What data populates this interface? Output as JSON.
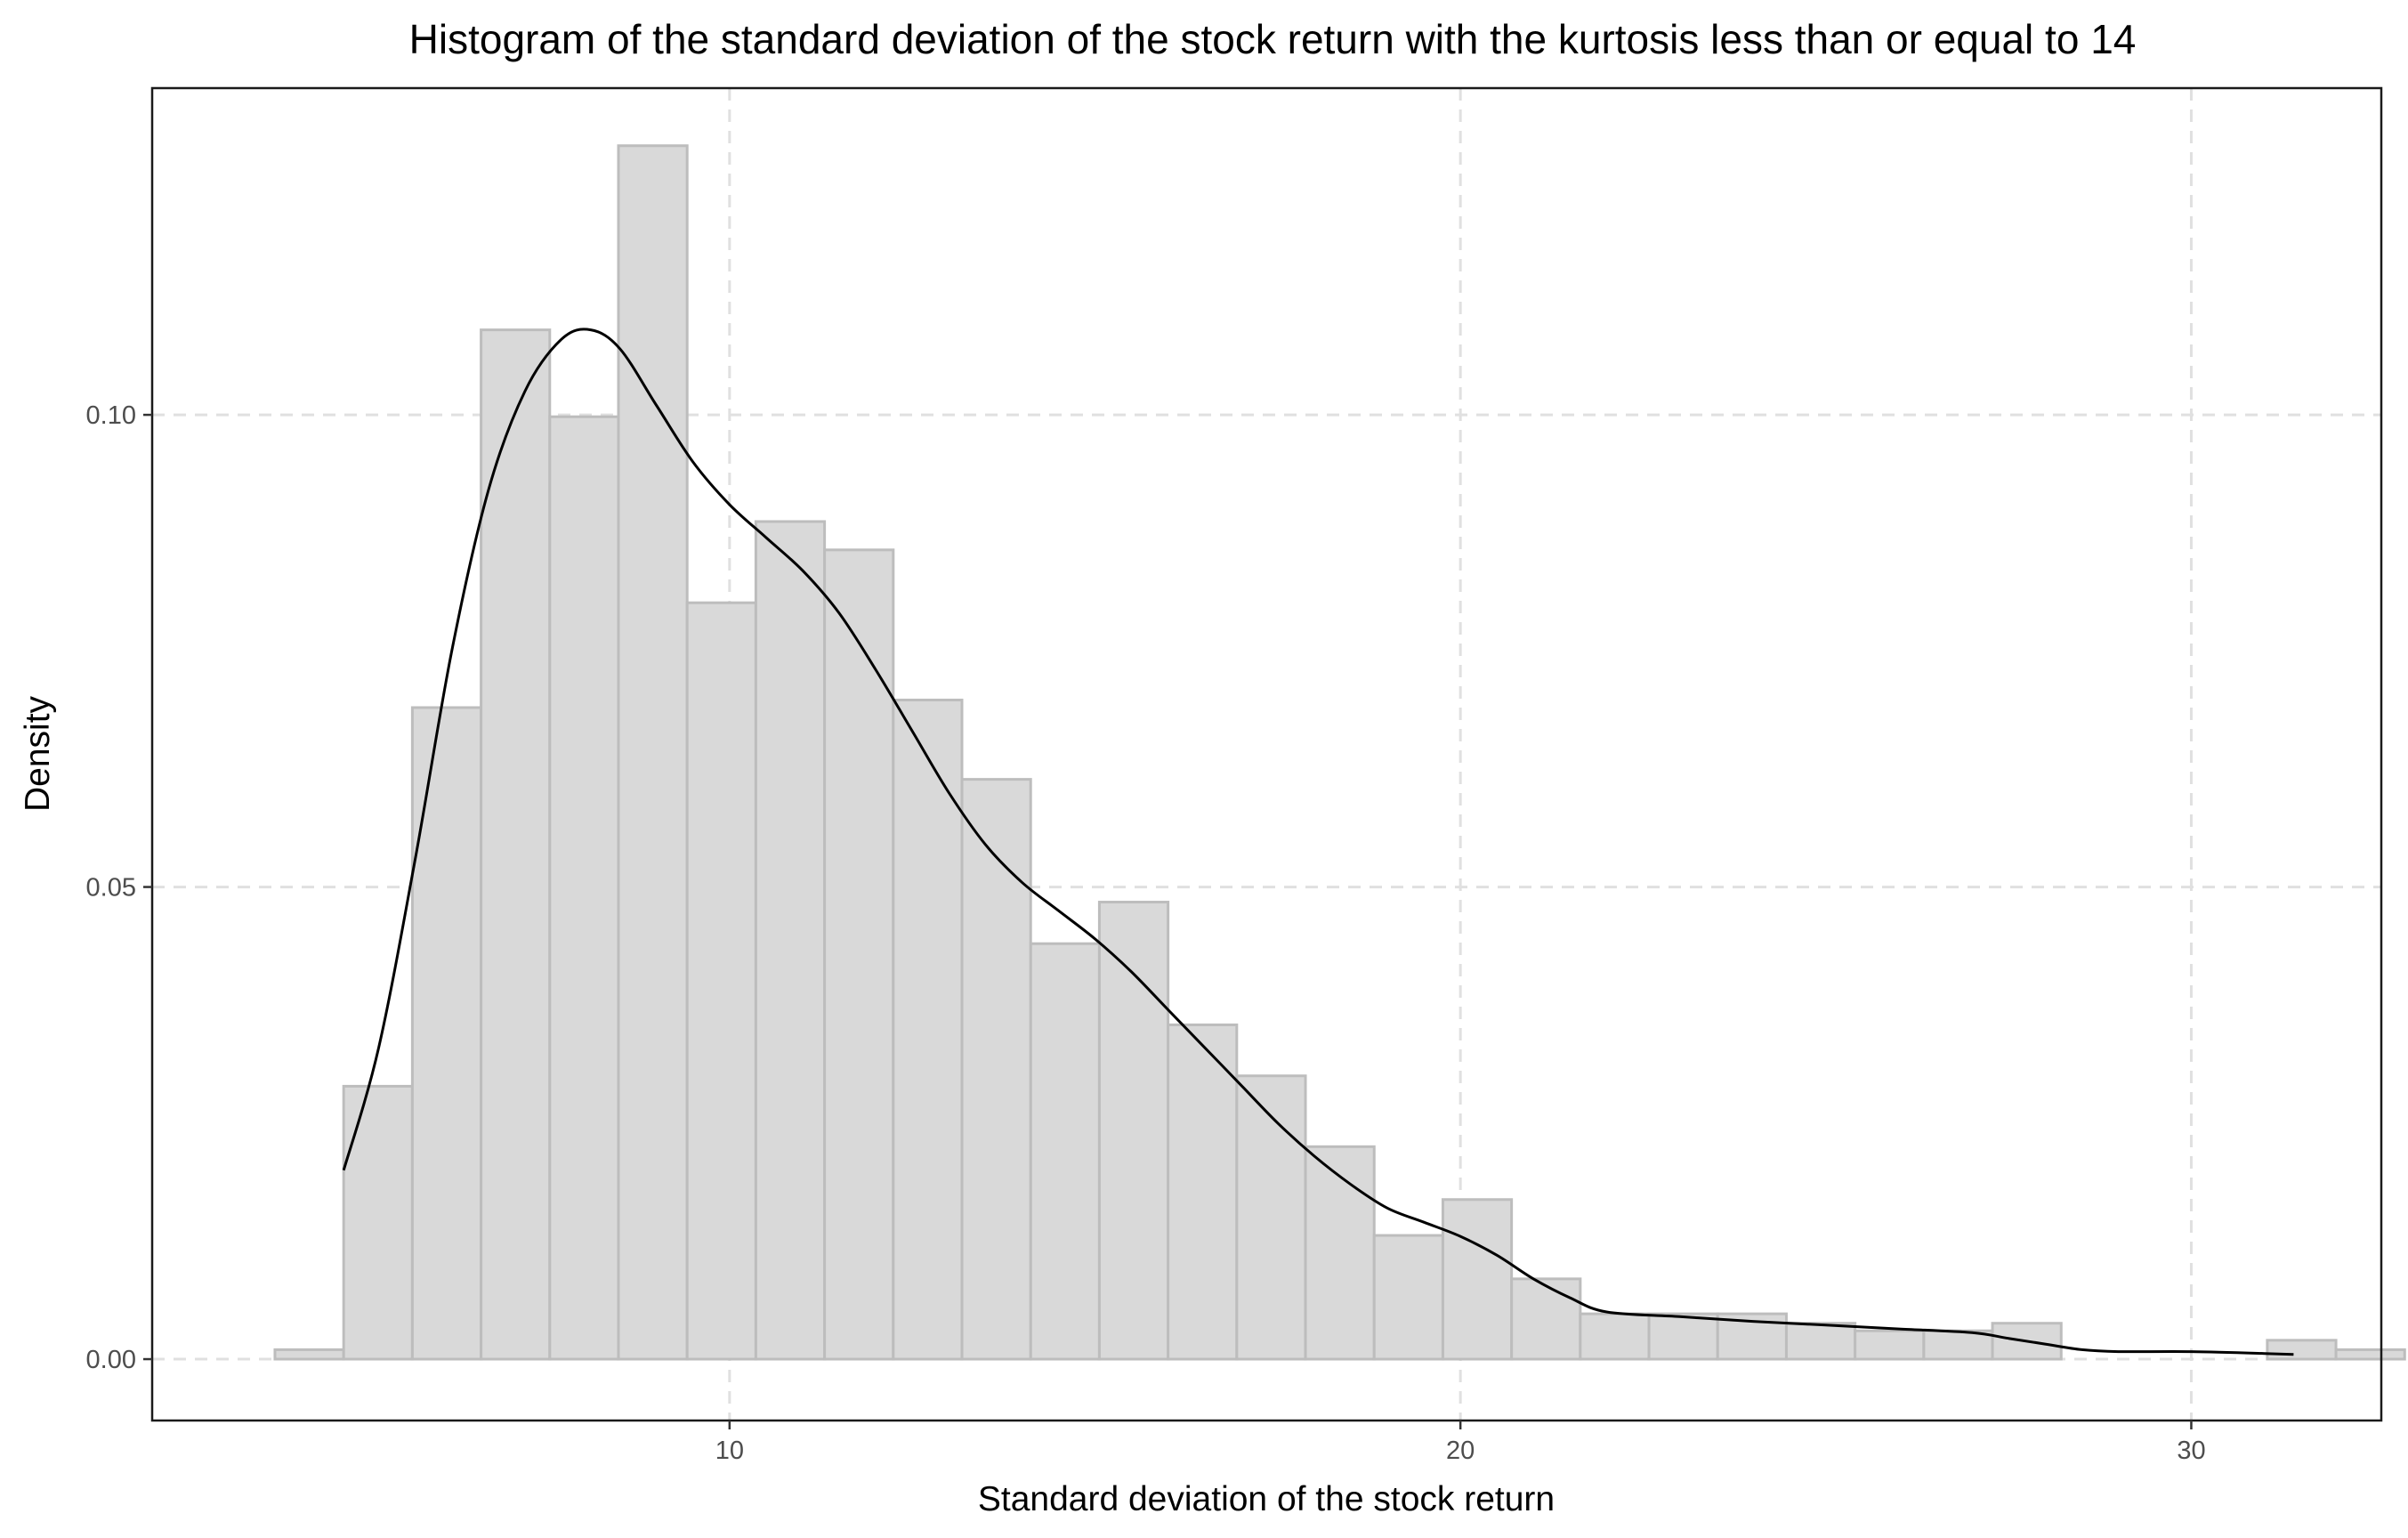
{
  "chart_data": {
    "type": "histogram",
    "title": "Histogram of the standard deviation of the stock return with the kurtosis less than or equal to 14",
    "xlabel": "Standard deviation of the stock return",
    "ylabel": "Density",
    "xlim": [
      2.1,
      32.6
    ],
    "ylim": [
      -0.0065,
      0.1346
    ],
    "xticks": [
      10,
      20,
      30
    ],
    "xtick_labels": [
      "10",
      "20",
      "30"
    ],
    "yticks": [
      0.0,
      0.05,
      0.1
    ],
    "ytick_labels": [
      "0.00",
      "0.05",
      "0.10"
    ],
    "grid": true,
    "grid_style": "dashed",
    "colors": {
      "bar_fill": "#d9d9d9",
      "bar_stroke": "#bdbdbd",
      "density_line": "#000000",
      "grid": "#e0e0e0",
      "panel_border": "#1a1a1a"
    },
    "bins": {
      "start": 3.78,
      "width": 0.94,
      "values": [
        0.001,
        0.0289,
        0.069,
        0.109,
        0.0998,
        0.1285,
        0.0801,
        0.0887,
        0.0857,
        0.0698,
        0.0614,
        0.044,
        0.0484,
        0.0354,
        0.03,
        0.0225,
        0.0131,
        0.0169,
        0.0085,
        0.0048,
        0.0048,
        0.0048,
        0.0038,
        0.003,
        0.003,
        0.0038,
        0.0,
        0.0,
        0.0,
        0.002,
        0.001
      ]
    },
    "density": {
      "x": [
        4.72,
        5.2,
        5.7,
        6.2,
        6.7,
        7.2,
        7.7,
        8.1,
        8.5,
        9.0,
        9.5,
        10.0,
        10.5,
        11.0,
        11.5,
        12.0,
        12.5,
        13.0,
        13.5,
        14.0,
        14.5,
        15.0,
        15.5,
        16.0,
        16.5,
        17.0,
        17.5,
        18.0,
        18.5,
        19.0,
        19.5,
        20.0,
        20.5,
        21.0,
        21.5,
        22.0,
        23.0,
        24.0,
        25.0,
        26.0,
        27.0,
        27.5,
        28.0,
        28.5,
        29.0,
        30.0,
        31.0,
        31.4
      ],
      "y": [
        0.02,
        0.033,
        0.053,
        0.075,
        0.092,
        0.1025,
        0.108,
        0.109,
        0.107,
        0.101,
        0.095,
        0.0905,
        0.087,
        0.0835,
        0.079,
        0.073,
        0.0665,
        0.06,
        0.0545,
        0.0505,
        0.0475,
        0.0445,
        0.041,
        0.037,
        0.033,
        0.029,
        0.025,
        0.0215,
        0.0185,
        0.016,
        0.0145,
        0.013,
        0.011,
        0.0085,
        0.0065,
        0.005,
        0.0045,
        0.004,
        0.0036,
        0.0032,
        0.0028,
        0.0022,
        0.0016,
        0.001,
        0.0008,
        0.0008,
        0.0006,
        0.0005
      ]
    }
  }
}
